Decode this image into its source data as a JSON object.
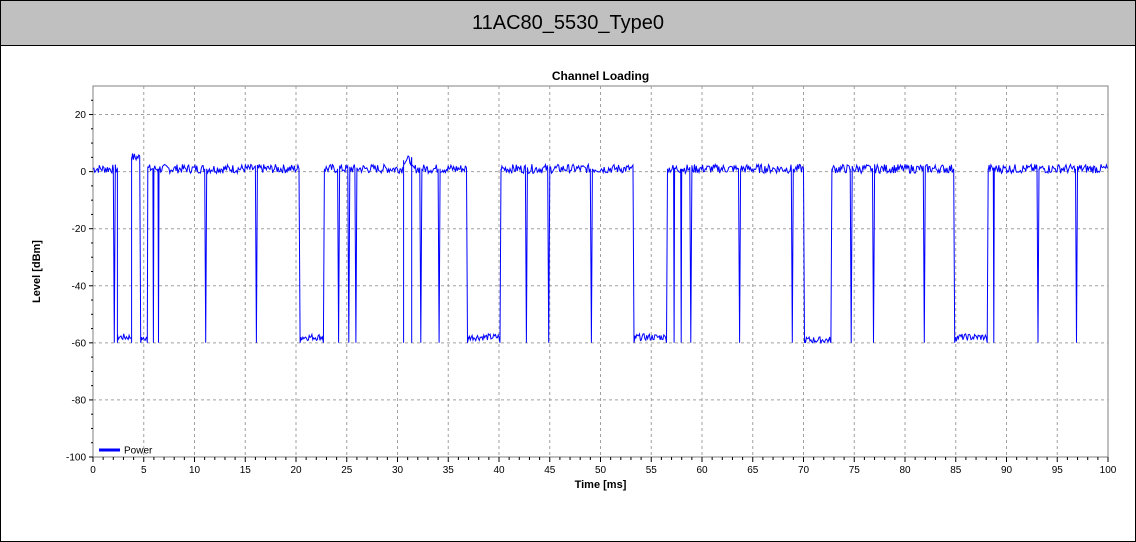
{
  "header": {
    "title": "11AC80_5530_Type0"
  },
  "colors": {
    "series": "#0000ff",
    "grid": "#a0a0a0",
    "header_bg": "#c0c0c0"
  },
  "chart_data": {
    "type": "line",
    "title": "Channel Loading",
    "xlabel": "Time [ms]",
    "ylabel": "Level [dBm]",
    "xlim": [
      0,
      100
    ],
    "ylim": [
      -100,
      30
    ],
    "x_ticks": [
      "0",
      "5",
      "10",
      "15",
      "20",
      "25",
      "30",
      "35",
      "40",
      "45",
      "50",
      "55",
      "60",
      "65",
      "70",
      "75",
      "80",
      "85",
      "90",
      "95",
      "100"
    ],
    "y_ticks": [
      "20",
      "0",
      "-20",
      "-40",
      "-60",
      "-80",
      "-100"
    ],
    "grid": true,
    "legend_position": "bottom-left",
    "series": [
      {
        "name": "Power",
        "low_level": -58,
        "high_level": 1,
        "segments": [
          {
            "from": 0.0,
            "to": 2.0,
            "level": 1
          },
          {
            "from": 2.2,
            "to": 2.4,
            "level": 1
          },
          {
            "from": 2.4,
            "to": 3.8,
            "level": -58
          },
          {
            "from": 3.8,
            "to": 4.6,
            "level": 5
          },
          {
            "from": 4.8,
            "to": 5.3,
            "level": -58
          },
          {
            "from": 5.4,
            "to": 5.9,
            "level": 1
          },
          {
            "from": 6.0,
            "to": 6.4,
            "level": 1
          },
          {
            "from": 6.5,
            "to": 11.0,
            "level": 1
          },
          {
            "from": 11.2,
            "to": 16.0,
            "level": 1
          },
          {
            "from": 16.2,
            "to": 20.3,
            "level": 1
          },
          {
            "from": 20.5,
            "to": 22.6,
            "level": -58
          },
          {
            "from": 22.8,
            "to": 24.1,
            "level": 1
          },
          {
            "from": 24.3,
            "to": 25.1,
            "level": 1
          },
          {
            "from": 25.3,
            "to": 25.8,
            "level": 1
          },
          {
            "from": 26.0,
            "to": 30.6,
            "level": 1
          },
          {
            "from": 30.6,
            "to": 31.4,
            "level": 4
          },
          {
            "from": 31.4,
            "to": 32.2,
            "level": 1
          },
          {
            "from": 32.4,
            "to": 34.0,
            "level": 1
          },
          {
            "from": 34.2,
            "to": 36.8,
            "level": 1
          },
          {
            "from": 37.0,
            "to": 40.0,
            "level": -58
          },
          {
            "from": 40.2,
            "to": 42.6,
            "level": 1
          },
          {
            "from": 42.8,
            "to": 44.8,
            "level": 1
          },
          {
            "from": 45.0,
            "to": 49.0,
            "level": 1
          },
          {
            "from": 49.2,
            "to": 53.2,
            "level": 1
          },
          {
            "from": 53.4,
            "to": 56.4,
            "level": -58
          },
          {
            "from": 56.6,
            "to": 57.2,
            "level": 1
          },
          {
            "from": 57.3,
            "to": 57.9,
            "level": 1
          },
          {
            "from": 58.0,
            "to": 58.8,
            "level": 1
          },
          {
            "from": 59.0,
            "to": 63.6,
            "level": 1
          },
          {
            "from": 63.8,
            "to": 68.8,
            "level": 1
          },
          {
            "from": 69.0,
            "to": 70.0,
            "level": 1
          },
          {
            "from": 70.2,
            "to": 72.6,
            "level": -59
          },
          {
            "from": 72.8,
            "to": 74.6,
            "level": 1
          },
          {
            "from": 74.8,
            "to": 76.8,
            "level": 1
          },
          {
            "from": 77.0,
            "to": 81.8,
            "level": 1
          },
          {
            "from": 82.0,
            "to": 84.8,
            "level": 1
          },
          {
            "from": 85.0,
            "to": 88.0,
            "level": -58
          },
          {
            "from": 88.2,
            "to": 88.7,
            "level": 1
          },
          {
            "from": 88.8,
            "to": 93.0,
            "level": 1
          },
          {
            "from": 93.2,
            "to": 96.8,
            "level": 1
          },
          {
            "from": 97.0,
            "to": 100.0,
            "level": 1
          }
        ]
      }
    ]
  }
}
